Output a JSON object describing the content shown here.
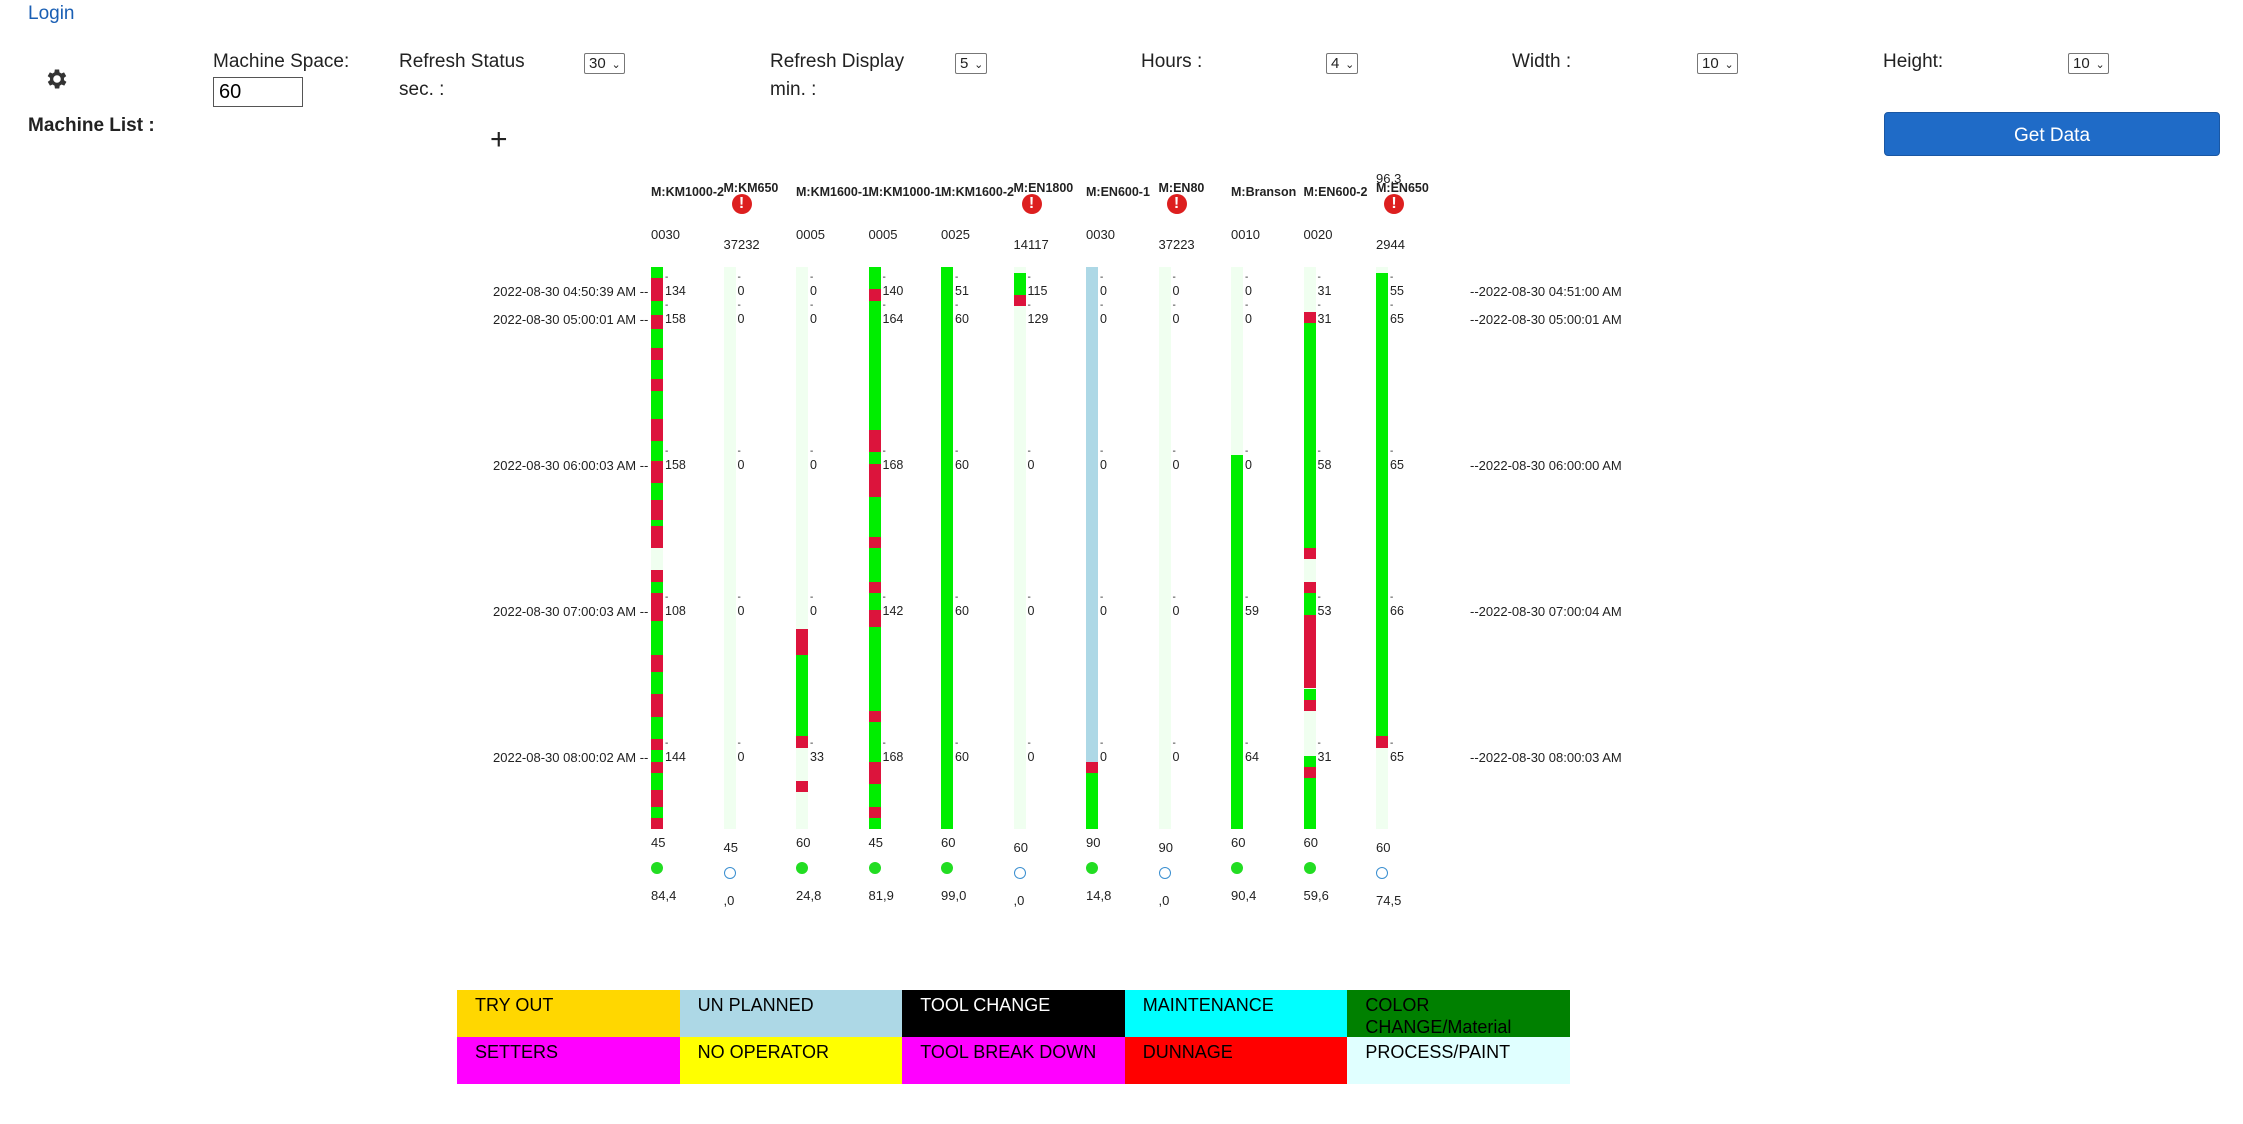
{
  "header": {
    "login": "Login"
  },
  "controls": {
    "machine_list_label": "Machine List :",
    "machine_space_label": "Machine Space:",
    "machine_space_value": "60",
    "refresh_status_label": "Refresh Status sec. :",
    "refresh_status_value": "30",
    "refresh_display_label": "Refresh Display min. :",
    "refresh_display_value": "5",
    "hours_label": "Hours :",
    "hours_value": "4",
    "width_label": "Width :",
    "width_value": "10",
    "height_label": "Height:",
    "height_value": "10",
    "add_symbol": "+",
    "get_data_label": "Get Data"
  },
  "timeline": {
    "left": [
      "2022-08-30 04:50:39 AM --",
      "2022-08-30 05:00:01 AM --",
      "2022-08-30 06:00:03 AM --",
      "2022-08-30 07:00:03 AM --",
      "2022-08-30 08:00:02 AM --"
    ],
    "right": [
      "--2022-08-30 04:51:00 AM",
      "--2022-08-30 05:00:01 AM",
      "--2022-08-30 06:00:00 AM",
      "--2022-08-30 07:00:04 AM",
      "--2022-08-30 08:00:03 AM"
    ]
  },
  "colors": {
    "running": "#00ee00",
    "stopped": "#dc143c",
    "unplanned": "#add8e6",
    "idle": "#f0fff0"
  },
  "machines": [
    {
      "name": "M:KM1000-2",
      "code": "0030",
      "alert": false,
      "extra": "",
      "vals": [
        "134",
        "158",
        "158",
        "108",
        "144"
      ],
      "footer": "45",
      "status": "on",
      "efficiency": "84,4",
      "segments": [
        [
          0,
          0.02,
          "running"
        ],
        [
          0.02,
          0.06,
          "stopped"
        ],
        [
          0.06,
          0.085,
          "running"
        ],
        [
          0.085,
          0.11,
          "stopped"
        ],
        [
          0.11,
          0.145,
          "running"
        ],
        [
          0.145,
          0.165,
          "stopped"
        ],
        [
          0.165,
          0.2,
          "running"
        ],
        [
          0.2,
          0.22,
          "stopped"
        ],
        [
          0.22,
          0.27,
          "running"
        ],
        [
          0.27,
          0.31,
          "stopped"
        ],
        [
          0.31,
          0.345,
          "running"
        ],
        [
          0.345,
          0.385,
          "stopped"
        ],
        [
          0.385,
          0.415,
          "running"
        ],
        [
          0.415,
          0.45,
          "stopped"
        ],
        [
          0.45,
          0.46,
          "running"
        ],
        [
          0.46,
          0.5,
          "stopped"
        ],
        [
          0.5,
          0.54,
          "idle"
        ],
        [
          0.54,
          0.56,
          "stopped"
        ],
        [
          0.56,
          0.58,
          "running"
        ],
        [
          0.58,
          0.63,
          "stopped"
        ],
        [
          0.63,
          0.69,
          "running"
        ],
        [
          0.69,
          0.72,
          "stopped"
        ],
        [
          0.72,
          0.76,
          "running"
        ],
        [
          0.76,
          0.8,
          "stopped"
        ],
        [
          0.8,
          0.84,
          "running"
        ],
        [
          0.84,
          0.86,
          "stopped"
        ],
        [
          0.86,
          0.88,
          "running"
        ],
        [
          0.88,
          0.9,
          "stopped"
        ],
        [
          0.9,
          0.93,
          "running"
        ],
        [
          0.93,
          0.96,
          "stopped"
        ],
        [
          0.96,
          0.98,
          "running"
        ],
        [
          0.98,
          1,
          "stopped"
        ]
      ]
    },
    {
      "name": "M:KM650",
      "code": "37232",
      "alert": true,
      "extra": "",
      "vals": [
        "0",
        "0",
        "0",
        "0",
        "0"
      ],
      "footer": "45",
      "status": "off",
      "efficiency": ",0",
      "segments": [
        [
          0.015,
          1,
          "idle"
        ]
      ]
    },
    {
      "name": "M:KM1600-1",
      "code": "0005",
      "alert": false,
      "extra": "",
      "vals": [
        "0",
        "0",
        "0",
        "0",
        "33"
      ],
      "footer": "60",
      "status": "on",
      "efficiency": "24,8",
      "segments": [
        [
          0,
          0.645,
          "idle"
        ],
        [
          0.645,
          0.69,
          "stopped"
        ],
        [
          0.69,
          0.835,
          "running"
        ],
        [
          0.835,
          0.855,
          "stopped"
        ],
        [
          0.855,
          0.915,
          "idle"
        ],
        [
          0.915,
          0.935,
          "stopped"
        ],
        [
          0.935,
          1,
          "idle"
        ]
      ]
    },
    {
      "name": "M:KM1000-1",
      "code": "0005",
      "alert": false,
      "extra": "",
      "vals": [
        "140",
        "164",
        "168",
        "142",
        "168"
      ],
      "footer": "45",
      "status": "on",
      "efficiency": "81,9",
      "segments": [
        [
          0,
          0.04,
          "running"
        ],
        [
          0.04,
          0.06,
          "stopped"
        ],
        [
          0.06,
          0.29,
          "running"
        ],
        [
          0.29,
          0.33,
          "stopped"
        ],
        [
          0.33,
          0.35,
          "running"
        ],
        [
          0.35,
          0.41,
          "stopped"
        ],
        [
          0.41,
          0.48,
          "running"
        ],
        [
          0.48,
          0.5,
          "stopped"
        ],
        [
          0.5,
          0.56,
          "running"
        ],
        [
          0.56,
          0.58,
          "stopped"
        ],
        [
          0.58,
          0.61,
          "running"
        ],
        [
          0.61,
          0.64,
          "stopped"
        ],
        [
          0.64,
          0.79,
          "running"
        ],
        [
          0.79,
          0.81,
          "stopped"
        ],
        [
          0.81,
          0.88,
          "running"
        ],
        [
          0.88,
          0.92,
          "stopped"
        ],
        [
          0.92,
          0.96,
          "running"
        ],
        [
          0.96,
          0.98,
          "stopped"
        ],
        [
          0.98,
          1,
          "running"
        ]
      ]
    },
    {
      "name": "M:KM1600-2",
      "code": "0025",
      "alert": false,
      "extra": "",
      "vals": [
        "51",
        "60",
        "60",
        "60",
        "60"
      ],
      "footer": "60",
      "status": "on",
      "efficiency": "99,0",
      "segments": [
        [
          0,
          1,
          "running"
        ]
      ]
    },
    {
      "name": "M:EN1800",
      "code": "14117",
      "alert": true,
      "extra": "",
      "vals": [
        "115",
        "129",
        "0",
        "0",
        "0"
      ],
      "footer": "60",
      "status": "off",
      "efficiency": ",0",
      "segments": [
        [
          0.01,
          0.05,
          "running"
        ],
        [
          0.05,
          0.07,
          "stopped"
        ],
        [
          0.07,
          1,
          "idle"
        ]
      ]
    },
    {
      "name": "M:EN600-1",
      "code": "0030",
      "alert": false,
      "extra": "",
      "vals": [
        "0",
        "0",
        "0",
        "0",
        "0"
      ],
      "footer": "90",
      "status": "on",
      "efficiency": "14,8",
      "segments": [
        [
          0,
          0.88,
          "unplanned"
        ],
        [
          0.88,
          0.9,
          "stopped"
        ],
        [
          0.9,
          1,
          "running"
        ]
      ]
    },
    {
      "name": "M:EN80",
      "code": "37223",
      "alert": true,
      "extra": "",
      "vals": [
        "0",
        "0",
        "0",
        "0",
        "0"
      ],
      "footer": "90",
      "status": "off",
      "efficiency": ",0",
      "segments": [
        [
          0.015,
          1,
          "idle"
        ]
      ]
    },
    {
      "name": "M:Branson",
      "code": "0010",
      "alert": false,
      "extra": "",
      "vals": [
        "0",
        "0",
        "0",
        "59",
        "64"
      ],
      "footer": "60",
      "status": "on",
      "efficiency": "90,4",
      "segments": [
        [
          0,
          0.335,
          "idle"
        ],
        [
          0.335,
          1,
          "running"
        ]
      ]
    },
    {
      "name": "M:EN600-2",
      "code": "0020",
      "alert": false,
      "extra": "",
      "vals": [
        "31",
        "31",
        "58",
        "53",
        "31"
      ],
      "footer": "60",
      "status": "on",
      "efficiency": "59,6",
      "segments": [
        [
          0,
          0.08,
          "idle"
        ],
        [
          0.08,
          0.1,
          "stopped"
        ],
        [
          0.1,
          0.5,
          "running"
        ],
        [
          0.5,
          0.52,
          "stopped"
        ],
        [
          0.52,
          0.56,
          "idle"
        ],
        [
          0.56,
          0.58,
          "stopped"
        ],
        [
          0.58,
          0.62,
          "running"
        ],
        [
          0.62,
          0.75,
          "stopped"
        ],
        [
          0.75,
          0.77,
          "running"
        ],
        [
          0.77,
          0.79,
          "stopped"
        ],
        [
          0.79,
          0.87,
          "idle"
        ],
        [
          0.87,
          0.89,
          "running"
        ],
        [
          0.89,
          0.91,
          "stopped"
        ],
        [
          0.91,
          1,
          "running"
        ]
      ]
    },
    {
      "name": "M:EN650",
      "code": "2944",
      "alert": true,
      "extra": "96,3",
      "vals": [
        "55",
        "65",
        "65",
        "66",
        "65"
      ],
      "footer": "60",
      "status": "off",
      "efficiency": "74,5",
      "segments": [
        [
          0.01,
          0.835,
          "running"
        ],
        [
          0.835,
          0.855,
          "stopped"
        ],
        [
          0.855,
          1,
          "idle"
        ]
      ]
    }
  ],
  "legend": [
    {
      "label": "TRY OUT",
      "bg": "#ffd700",
      "fg": "#000000"
    },
    {
      "label": "UN PLANNED",
      "bg": "#add8e6",
      "fg": "#000000"
    },
    {
      "label": "TOOL CHANGE",
      "bg": "#000000",
      "fg": "#ffffff"
    },
    {
      "label": "MAINTENANCE",
      "bg": "#00ffff",
      "fg": "#000000"
    },
    {
      "label": "COLOR CHANGE/Material",
      "bg": "#008000",
      "fg": "#000000"
    },
    {
      "label": "SETTERS",
      "bg": "#ff00ff",
      "fg": "#000000"
    },
    {
      "label": "NO OPERATOR",
      "bg": "#ffff00",
      "fg": "#000000"
    },
    {
      "label": "TOOL BREAK DOWN",
      "bg": "#ff00ff",
      "fg": "#000000"
    },
    {
      "label": "DUNNAGE",
      "bg": "#ff0000",
      "fg": "#000000"
    },
    {
      "label": "PROCESS/PAINT",
      "bg": "#e0ffff",
      "fg": "#000000"
    }
  ]
}
